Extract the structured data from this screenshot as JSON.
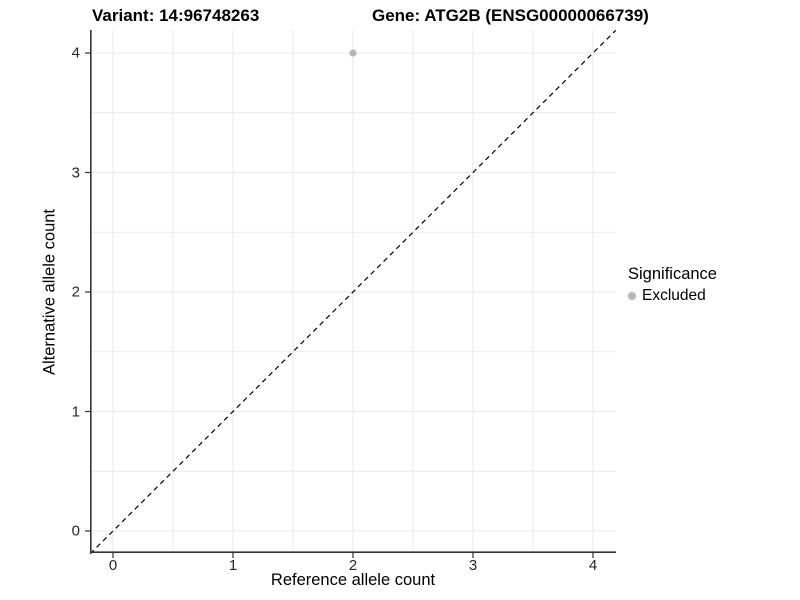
{
  "chart_data": {
    "type": "scatter",
    "title_left": "Variant: 14:96748263",
    "title_right": "Gene: ATG2B (ENSG00000066739)",
    "xlabel": "Reference allele count",
    "ylabel": "Alternative allele count",
    "xlim": [
      -0.19,
      4.19
    ],
    "ylim": [
      -0.19,
      4.19
    ],
    "x_ticks": [
      0,
      1,
      2,
      3,
      4
    ],
    "y_ticks": [
      0,
      1,
      2,
      3,
      4
    ],
    "minor_grid_step": 0.5,
    "grid": true,
    "series": [
      {
        "name": "Excluded",
        "color": "#b5b5b5",
        "points": [
          [
            2,
            4
          ]
        ]
      }
    ],
    "reference_line": {
      "kind": "identity",
      "dash": "dashed",
      "color": "#000000"
    },
    "legend": {
      "title": "Significance",
      "position": "right",
      "items": [
        {
          "label": "Excluded",
          "color": "#b5b5b5"
        }
      ]
    },
    "colors": {
      "background": "#ffffff",
      "grid": "#e9e9e9",
      "axis": "#333333",
      "tick_text": "#262626"
    }
  }
}
